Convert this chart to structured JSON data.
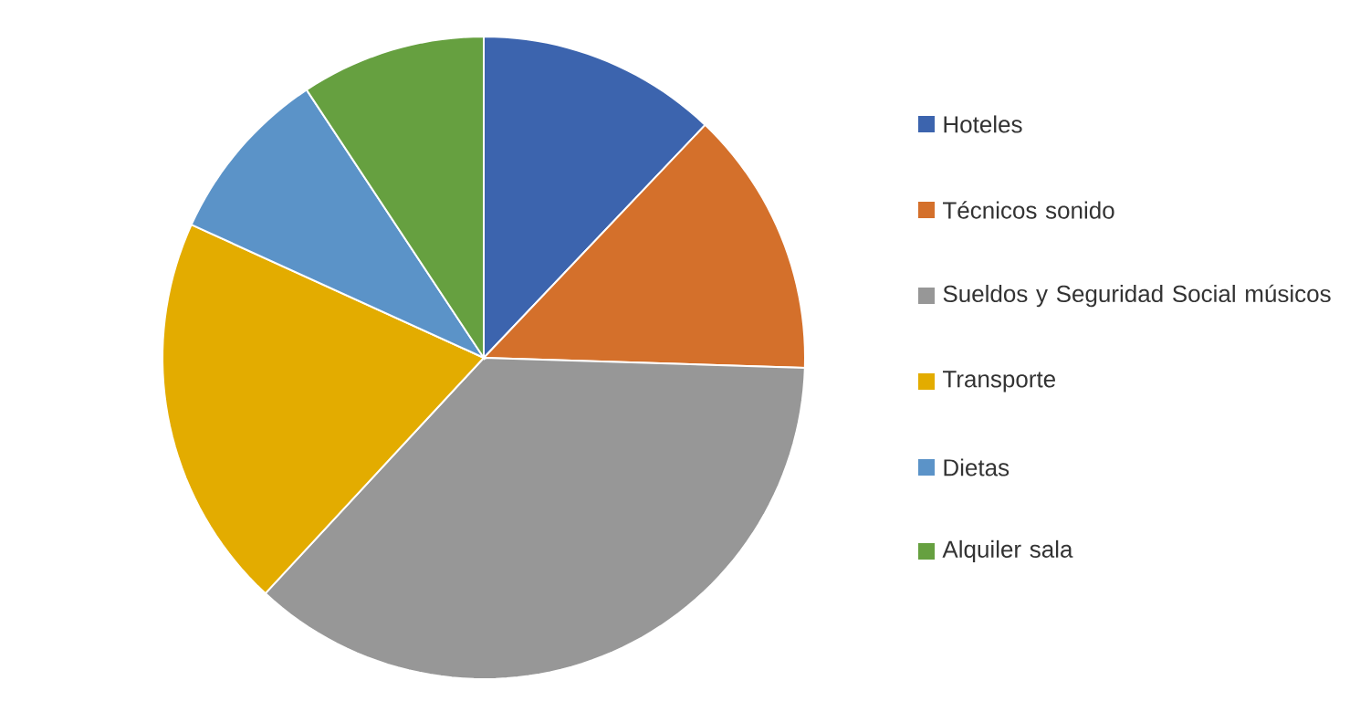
{
  "chart_data": {
    "type": "pie",
    "categories": [
      "Hoteles",
      "Técnicos sonido",
      "Sueldos y Seguridad Social músicos",
      "Transporte",
      "Dietas",
      "Alquiler sala"
    ],
    "values": [
      12.1,
      13.4,
      36.4,
      19.9,
      8.9,
      9.3
    ],
    "colors": [
      "#3c64ae",
      "#d4702b",
      "#979797",
      "#e3ac00",
      "#5b93c8",
      "#66a040"
    ],
    "legend": "right"
  }
}
